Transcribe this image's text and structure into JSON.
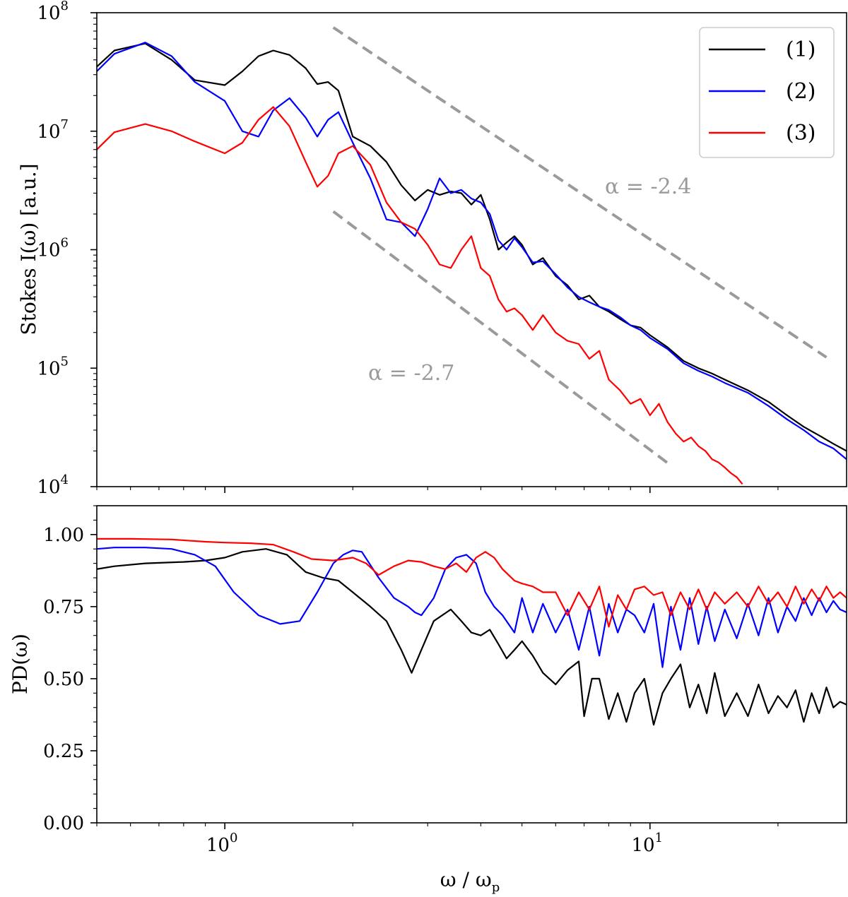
{
  "chart_data": [
    {
      "panel": "top",
      "type": "line",
      "scale": {
        "x": "log",
        "y": "log"
      },
      "ylabel": "Stokes I(ω) [a.u.]",
      "xlim": [
        0.5,
        29
      ],
      "ylim": [
        10000,
        100000000
      ],
      "y_ticks": [
        {
          "value": 10000,
          "base": "10",
          "exp": "4"
        },
        {
          "value": 100000,
          "base": "10",
          "exp": "5"
        },
        {
          "value": 1000000,
          "base": "10",
          "exp": "6"
        },
        {
          "value": 10000000,
          "base": "10",
          "exp": "7"
        },
        {
          "value": 100000000,
          "base": "10",
          "exp": "8"
        }
      ],
      "legend": {
        "position": "top-right",
        "entries": [
          {
            "label": "(1)",
            "color": "#000000"
          },
          {
            "label": "(2)",
            "color": "#0000ff"
          },
          {
            "label": "(3)",
            "color": "#ff0000"
          }
        ]
      },
      "series": [
        {
          "name": "(1)",
          "color": "#000000",
          "x": [
            0.5,
            0.55,
            0.65,
            0.75,
            0.85,
            1.0,
            1.1,
            1.2,
            1.3,
            1.42,
            1.55,
            1.65,
            1.75,
            1.85,
            2.0,
            2.2,
            2.4,
            2.6,
            2.8,
            3.0,
            3.2,
            3.4,
            3.6,
            3.8,
            4.0,
            4.2,
            4.4,
            4.6,
            4.8,
            5.0,
            5.3,
            5.6,
            6.0,
            6.4,
            6.8,
            7.2,
            7.6,
            8.0,
            8.5,
            9.0,
            9.5,
            10.0,
            11.0,
            12.0,
            13.0,
            14.0,
            15.0,
            17.0,
            19.0,
            21.0,
            23.0,
            25.0,
            27.0,
            29.0
          ],
          "y": [
            35000000,
            48000000,
            55000000,
            40000000,
            27000000,
            24500000,
            32000000,
            43000000,
            48000000,
            44000000,
            34000000,
            25000000,
            26000000,
            22000000,
            9000000,
            7500000,
            5500000,
            3500000,
            2600000,
            3200000,
            2900000,
            3100000,
            3000000,
            2400000,
            2900000,
            1800000,
            1000000,
            1150000,
            1300000,
            1100000,
            750000,
            850000,
            600000,
            500000,
            380000,
            410000,
            330000,
            300000,
            260000,
            230000,
            220000,
            190000,
            150000,
            115000,
            100000,
            90000,
            80000,
            65000,
            52000,
            40000,
            32000,
            27000,
            23000,
            20000
          ]
        },
        {
          "name": "(2)",
          "color": "#0000ff",
          "x": [
            0.5,
            0.55,
            0.65,
            0.75,
            0.85,
            1.0,
            1.1,
            1.2,
            1.3,
            1.42,
            1.55,
            1.65,
            1.75,
            1.85,
            2.0,
            2.2,
            2.4,
            2.6,
            2.8,
            3.0,
            3.2,
            3.4,
            3.6,
            3.8,
            4.0,
            4.2,
            4.4,
            4.6,
            4.8,
            5.0,
            5.3,
            5.6,
            6.0,
            6.4,
            6.8,
            7.2,
            7.6,
            8.0,
            8.5,
            9.0,
            9.5,
            10.0,
            11.0,
            12.0,
            13.0,
            14.0,
            15.0,
            17.0,
            19.0,
            21.0,
            23.0,
            25.0,
            27.0,
            29.0
          ],
          "y": [
            32000000,
            45000000,
            56000000,
            43000000,
            26000000,
            18000000,
            10000000,
            9000000,
            15000000,
            19000000,
            13000000,
            9000000,
            12500000,
            14500000,
            8000000,
            4000000,
            1800000,
            1700000,
            1300000,
            2200000,
            4000000,
            3000000,
            3200000,
            2700000,
            2500000,
            2000000,
            1200000,
            1000000,
            1250000,
            1050000,
            780000,
            800000,
            620000,
            480000,
            400000,
            360000,
            330000,
            310000,
            270000,
            230000,
            210000,
            180000,
            145000,
            110000,
            95000,
            85000,
            75000,
            62000,
            48000,
            37000,
            30000,
            24000,
            21000,
            17000
          ]
        },
        {
          "name": "(3)",
          "color": "#ff0000",
          "x": [
            0.5,
            0.55,
            0.65,
            0.75,
            0.85,
            1.0,
            1.1,
            1.2,
            1.3,
            1.42,
            1.55,
            1.65,
            1.75,
            1.85,
            2.0,
            2.2,
            2.4,
            2.6,
            2.8,
            3.0,
            3.2,
            3.4,
            3.6,
            3.8,
            4.0,
            4.2,
            4.4,
            4.6,
            4.8,
            5.0,
            5.3,
            5.6,
            6.0,
            6.4,
            6.8,
            7.2,
            7.6,
            8.0,
            8.5,
            9.0,
            9.5,
            10.0,
            10.5,
            11.0,
            11.5,
            12.0,
            12.5,
            13.0,
            13.5,
            14.0,
            14.5,
            15.0,
            15.5,
            16.0,
            16.5
          ],
          "y": [
            7000000,
            9800000,
            11500000,
            10000000,
            8200000,
            6500000,
            8000000,
            12500000,
            16000000,
            11000000,
            5500000,
            3400000,
            4200000,
            6500000,
            7500000,
            5200000,
            2500000,
            1700000,
            1500000,
            1100000,
            750000,
            700000,
            1000000,
            1300000,
            700000,
            600000,
            380000,
            300000,
            320000,
            280000,
            210000,
            280000,
            200000,
            170000,
            160000,
            120000,
            140000,
            80000,
            65000,
            50000,
            55000,
            40000,
            50000,
            35000,
            28000,
            24000,
            26000,
            22000,
            20000,
            17000,
            16000,
            14500,
            13000,
            12000,
            10500
          ]
        }
      ],
      "guides": [
        {
          "label": "α = -2.4",
          "slope": -2.4,
          "x_start": 1.8,
          "x_end": 26.0,
          "y_start": 75000000,
          "color": "#9a9a9a"
        },
        {
          "label": "α = -2.7",
          "slope": -2.7,
          "x_start": 1.8,
          "x_end": 11.0,
          "y_start": 2100000,
          "color": "#9a9a9a"
        }
      ]
    },
    {
      "panel": "bottom",
      "type": "line",
      "scale": {
        "x": "log",
        "y": "linear"
      },
      "xlabel": "ω / ω",
      "xlabel_sub": "p",
      "ylabel": "PD(ω)",
      "xlim": [
        0.5,
        29
      ],
      "ylim": [
        0.0,
        1.1
      ],
      "y_ticks": [
        0.0,
        0.25,
        0.5,
        0.75,
        1.0
      ],
      "y_tick_labels": [
        "0.00",
        "0.25",
        "0.50",
        "0.75",
        "1.00"
      ],
      "x_ticks": [
        {
          "value": 1,
          "base": "10",
          "exp": "0"
        },
        {
          "value": 10,
          "base": "10",
          "exp": "1"
        }
      ],
      "series": [
        {
          "name": "(1)",
          "color": "#000000",
          "x": [
            0.5,
            0.55,
            0.65,
            0.8,
            0.9,
            1.0,
            1.1,
            1.25,
            1.4,
            1.55,
            1.7,
            1.85,
            2.0,
            2.2,
            2.4,
            2.6,
            2.75,
            2.9,
            3.1,
            3.4,
            3.6,
            3.8,
            4.0,
            4.2,
            4.4,
            4.6,
            4.8,
            5.0,
            5.3,
            5.6,
            6.0,
            6.4,
            6.8,
            7.0,
            7.3,
            7.6,
            8.0,
            8.4,
            8.8,
            9.2,
            9.7,
            10.2,
            10.7,
            11.2,
            11.8,
            12.4,
            13.0,
            13.6,
            14.2,
            15.0,
            16.0,
            17.0,
            18.0,
            19.0,
            20.0,
            21.0,
            22.0,
            23.0,
            24.0,
            25.0,
            26.0,
            27.0,
            28.0,
            29.0
          ],
          "y": [
            0.88,
            0.89,
            0.9,
            0.905,
            0.91,
            0.92,
            0.94,
            0.95,
            0.93,
            0.87,
            0.85,
            0.84,
            0.8,
            0.75,
            0.7,
            0.6,
            0.52,
            0.6,
            0.7,
            0.74,
            0.7,
            0.66,
            0.65,
            0.67,
            0.62,
            0.57,
            0.6,
            0.63,
            0.58,
            0.52,
            0.48,
            0.53,
            0.56,
            0.37,
            0.5,
            0.5,
            0.36,
            0.45,
            0.35,
            0.45,
            0.5,
            0.34,
            0.45,
            0.5,
            0.55,
            0.4,
            0.48,
            0.38,
            0.52,
            0.37,
            0.45,
            0.37,
            0.48,
            0.38,
            0.44,
            0.4,
            0.46,
            0.35,
            0.45,
            0.38,
            0.47,
            0.4,
            0.42,
            0.41
          ]
        },
        {
          "name": "(2)",
          "color": "#0000ff",
          "x": [
            0.5,
            0.55,
            0.65,
            0.75,
            0.85,
            0.95,
            1.05,
            1.2,
            1.35,
            1.5,
            1.65,
            1.8,
            1.9,
            2.0,
            2.1,
            2.3,
            2.5,
            2.7,
            2.8,
            2.9,
            3.1,
            3.3,
            3.5,
            3.7,
            3.9,
            4.1,
            4.3,
            4.5,
            4.8,
            5.0,
            5.3,
            5.6,
            6.0,
            6.4,
            6.8,
            7.2,
            7.6,
            8.0,
            8.4,
            8.8,
            9.2,
            9.7,
            10.2,
            10.7,
            11.2,
            11.8,
            12.4,
            13.0,
            13.6,
            14.2,
            15.0,
            16.0,
            17.0,
            18.0,
            19.0,
            20.0,
            21.0,
            22.0,
            23.0,
            24.0,
            25.0,
            26.0,
            27.0,
            28.0,
            29.0
          ],
          "y": [
            0.95,
            0.955,
            0.955,
            0.95,
            0.93,
            0.89,
            0.8,
            0.72,
            0.69,
            0.7,
            0.8,
            0.9,
            0.93,
            0.945,
            0.94,
            0.85,
            0.78,
            0.75,
            0.73,
            0.72,
            0.78,
            0.88,
            0.92,
            0.93,
            0.9,
            0.8,
            0.75,
            0.72,
            0.66,
            0.78,
            0.66,
            0.76,
            0.66,
            0.74,
            0.6,
            0.75,
            0.58,
            0.76,
            0.66,
            0.74,
            0.72,
            0.66,
            0.76,
            0.54,
            0.75,
            0.6,
            0.78,
            0.62,
            0.75,
            0.63,
            0.74,
            0.64,
            0.76,
            0.65,
            0.78,
            0.66,
            0.75,
            0.7,
            0.78,
            0.72,
            0.78,
            0.73,
            0.77,
            0.74,
            0.73
          ]
        },
        {
          "name": "(3)",
          "color": "#ff0000",
          "x": [
            0.5,
            0.6,
            0.75,
            0.9,
            1.0,
            1.15,
            1.3,
            1.45,
            1.6,
            1.8,
            2.0,
            2.15,
            2.3,
            2.5,
            2.7,
            2.9,
            3.1,
            3.3,
            3.5,
            3.7,
            3.9,
            4.1,
            4.3,
            4.5,
            4.8,
            5.0,
            5.3,
            5.6,
            6.0,
            6.4,
            6.8,
            7.2,
            7.6,
            8.0,
            8.4,
            8.8,
            9.2,
            9.7,
            10.2,
            10.7,
            11.2,
            11.8,
            12.4,
            13.0,
            13.6,
            14.2,
            15.0,
            16.0,
            17.0,
            18.0,
            19.0,
            20.0,
            21.0,
            22.0,
            23.0,
            24.0,
            25.0,
            26.0,
            27.0,
            28.0,
            29.0
          ],
          "y": [
            0.985,
            0.985,
            0.983,
            0.975,
            0.972,
            0.97,
            0.965,
            0.94,
            0.915,
            0.91,
            0.92,
            0.9,
            0.86,
            0.89,
            0.91,
            0.905,
            0.89,
            0.88,
            0.9,
            0.87,
            0.92,
            0.94,
            0.92,
            0.88,
            0.84,
            0.83,
            0.82,
            0.8,
            0.8,
            0.72,
            0.8,
            0.74,
            0.82,
            0.68,
            0.79,
            0.74,
            0.81,
            0.82,
            0.79,
            0.8,
            0.72,
            0.8,
            0.74,
            0.81,
            0.74,
            0.8,
            0.76,
            0.8,
            0.75,
            0.82,
            0.76,
            0.8,
            0.75,
            0.82,
            0.76,
            0.81,
            0.77,
            0.82,
            0.78,
            0.8,
            0.78
          ]
        }
      ]
    }
  ]
}
